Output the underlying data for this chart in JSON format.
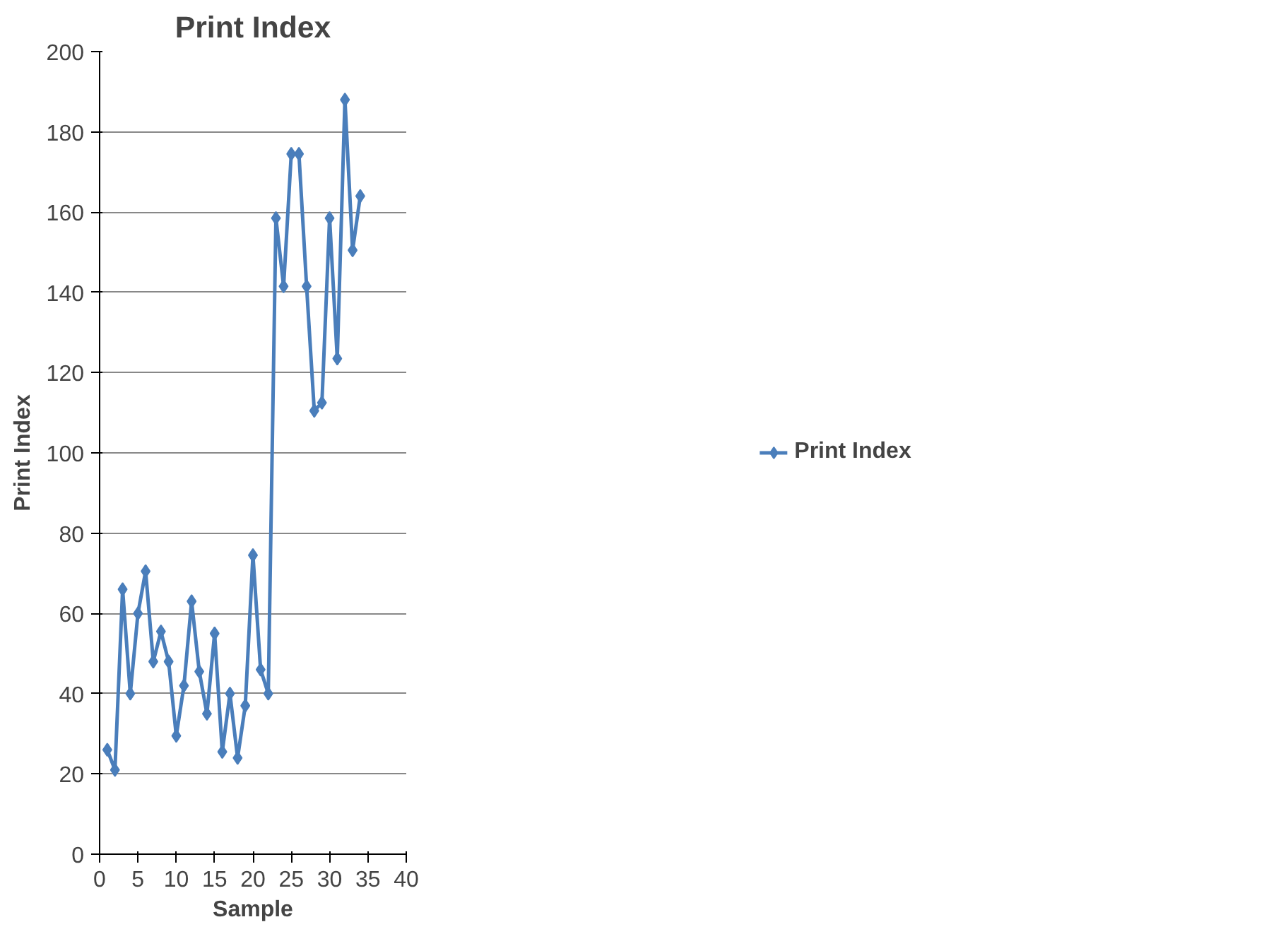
{
  "chart_data": {
    "type": "line",
    "title": "Print Index",
    "xlabel": "Sample",
    "ylabel": "Print Index",
    "x": [
      1,
      2,
      3,
      4,
      5,
      6,
      7,
      8,
      9,
      10,
      11,
      12,
      13,
      14,
      15,
      16,
      17,
      18,
      19,
      20,
      21,
      22,
      23,
      24,
      25,
      26,
      27,
      28,
      29,
      30,
      31,
      32,
      33,
      34
    ],
    "series": [
      {
        "name": "Print Index",
        "color": "#4a7ebb",
        "values": [
          26,
          21,
          66,
          40,
          60,
          70.5,
          48,
          55.5,
          48,
          29.5,
          42,
          63,
          45.5,
          35,
          55,
          25.5,
          40,
          24,
          37,
          74.5,
          46,
          40,
          158.5,
          141.5,
          174.5,
          174.5,
          141.5,
          110.5,
          112.5,
          158.5,
          123.5,
          188,
          150.5,
          164
        ]
      }
    ],
    "xlim": [
      0,
      40
    ],
    "xticks": [
      0,
      5,
      10,
      15,
      20,
      25,
      30,
      35,
      40
    ],
    "ylim": [
      0,
      200
    ],
    "yticks": [
      0,
      20,
      40,
      60,
      80,
      100,
      120,
      140,
      160,
      180,
      200
    ],
    "grid": "y",
    "legend": "right",
    "marker": "diamond",
    "line_style": "solid"
  }
}
